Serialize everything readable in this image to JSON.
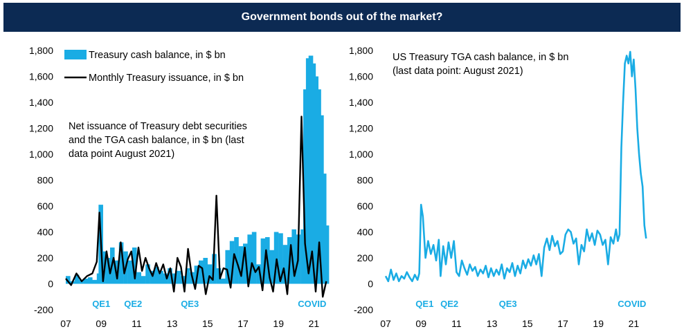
{
  "title": "Government bonds out of the market?",
  "colors": {
    "title_bg": "#0c2a53",
    "tga": "#1aace4",
    "issuance": "#000000",
    "event": "#1aace4"
  },
  "chart_data": [
    {
      "type": "bar",
      "name": "left",
      "legend": [
        "Treasury cash balance, in $ bn",
        "Monthly Treasury issuance, in $ bn"
      ],
      "annotation": [
        "Net issuance of Treasury debt securities",
        "and the TGA cash balance, in $ bn (last",
        "data point August 2021)"
      ],
      "xlim": [
        2007,
        2022
      ],
      "ylim": [
        -200,
        1800
      ],
      "yticks": [
        -200,
        0,
        200,
        400,
        600,
        800,
        1000,
        1200,
        1400,
        1600,
        1800
      ],
      "ytick_labels": [
        "-200",
        "0",
        "200",
        "400",
        "600",
        "800",
        "1,000",
        "1,200",
        "1,400",
        "1,600",
        "1,800"
      ],
      "xticks": [
        2007,
        2009,
        2011,
        2013,
        2015,
        2017,
        2019,
        2021
      ],
      "xtick_labels": [
        "07",
        "09",
        "11",
        "13",
        "15",
        "17",
        "19",
        "21"
      ],
      "events": [
        {
          "label": "QE1",
          "x": 2009.0
        },
        {
          "label": "QE2",
          "x": 2010.8
        },
        {
          "label": "QE3",
          "x": 2014.0
        },
        {
          "label": "COVID",
          "x": 2020.9
        }
      ],
      "series": [
        {
          "name": "Treasury cash balance, in $ bn",
          "kind": "bar",
          "x": [
            2007.0,
            2007.25,
            2007.5,
            2007.75,
            2008.0,
            2008.25,
            2008.5,
            2008.75,
            2008.85,
            2009.0,
            2009.25,
            2009.5,
            2009.75,
            2010.0,
            2010.25,
            2010.5,
            2010.75,
            2011.0,
            2011.25,
            2011.5,
            2011.75,
            2012.0,
            2012.25,
            2012.5,
            2012.75,
            2013.0,
            2013.25,
            2013.5,
            2013.75,
            2014.0,
            2014.25,
            2014.5,
            2014.75,
            2015.0,
            2015.25,
            2015.5,
            2015.75,
            2016.0,
            2016.25,
            2016.5,
            2016.75,
            2017.0,
            2017.25,
            2017.5,
            2017.75,
            2018.0,
            2018.25,
            2018.5,
            2018.75,
            2019.0,
            2019.25,
            2019.5,
            2019.75,
            2020.0,
            2020.25,
            2020.4,
            2020.55,
            2020.7,
            2020.85,
            2021.0,
            2021.15,
            2021.3,
            2021.45,
            2021.6
          ],
          "values": [
            60,
            20,
            70,
            30,
            40,
            50,
            30,
            80,
            610,
            250,
            200,
            280,
            180,
            320,
            250,
            180,
            280,
            90,
            60,
            150,
            100,
            130,
            100,
            80,
            120,
            80,
            100,
            60,
            120,
            90,
            140,
            180,
            200,
            150,
            230,
            120,
            40,
            260,
            330,
            360,
            290,
            310,
            380,
            400,
            150,
            350,
            360,
            260,
            400,
            390,
            300,
            360,
            420,
            380,
            420,
            1500,
            1740,
            1760,
            1700,
            1600,
            1500,
            1300,
            850,
            450
          ]
        },
        {
          "name": "Monthly Treasury issuance, in $ bn",
          "kind": "line",
          "x": [
            2007.0,
            2007.3,
            2007.6,
            2007.9,
            2008.2,
            2008.5,
            2008.75,
            2008.9,
            2009.1,
            2009.3,
            2009.5,
            2009.7,
            2009.9,
            2010.1,
            2010.3,
            2010.5,
            2010.7,
            2010.9,
            2011.1,
            2011.3,
            2011.5,
            2011.7,
            2011.9,
            2012.1,
            2012.3,
            2012.5,
            2012.7,
            2012.9,
            2013.1,
            2013.3,
            2013.5,
            2013.7,
            2013.9,
            2014.1,
            2014.3,
            2014.5,
            2014.7,
            2014.9,
            2015.1,
            2015.3,
            2015.5,
            2015.7,
            2015.9,
            2016.1,
            2016.3,
            2016.5,
            2016.7,
            2016.9,
            2017.1,
            2017.3,
            2017.5,
            2017.7,
            2017.9,
            2018.1,
            2018.3,
            2018.5,
            2018.7,
            2018.9,
            2019.1,
            2019.3,
            2019.5,
            2019.7,
            2019.9,
            2020.1,
            2020.3,
            2020.5,
            2020.7,
            2020.9,
            2021.1,
            2021.3,
            2021.5,
            2021.7
          ],
          "values": [
            40,
            -10,
            80,
            20,
            60,
            80,
            170,
            550,
            20,
            250,
            80,
            200,
            40,
            320,
            80,
            190,
            250,
            40,
            280,
            100,
            200,
            120,
            60,
            160,
            80,
            150,
            40,
            120,
            -60,
            200,
            130,
            -60,
            270,
            70,
            -40,
            140,
            120,
            -80,
            60,
            30,
            680,
            40,
            120,
            110,
            -30,
            230,
            150,
            60,
            280,
            -20,
            160,
            90,
            130,
            -50,
            260,
            50,
            -60,
            190,
            20,
            120,
            -80,
            300,
            60,
            180,
            1290,
            310,
            80,
            250,
            -60,
            320,
            -100,
            20
          ]
        }
      ]
    },
    {
      "type": "line",
      "name": "right",
      "annotation": [
        "US Treasury TGA cash balance, in $ bn",
        "(last data point: August 2021)"
      ],
      "xlim": [
        2007,
        2022
      ],
      "ylim": [
        -200,
        1800
      ],
      "yticks": [
        -200,
        0,
        200,
        400,
        600,
        800,
        1000,
        1200,
        1400,
        1600,
        1800
      ],
      "ytick_labels": [
        "-200",
        "0",
        "200",
        "400",
        "600",
        "800",
        "1,000",
        "1,200",
        "1,400",
        "1,600",
        "1,800"
      ],
      "xticks": [
        2007,
        2009,
        2011,
        2013,
        2015,
        2017,
        2019,
        2021
      ],
      "xtick_labels": [
        "07",
        "09",
        "11",
        "13",
        "15",
        "17",
        "19",
        "21"
      ],
      "events": [
        {
          "label": "QE1",
          "x": 2009.2
        },
        {
          "label": "QE2",
          "x": 2010.6
        },
        {
          "label": "QE3",
          "x": 2013.9
        },
        {
          "label": "COVID",
          "x": 2020.9
        }
      ],
      "series": [
        {
          "name": "US Treasury TGA cash balance, in $ bn",
          "x": [
            2007.0,
            2007.15,
            2007.3,
            2007.45,
            2007.6,
            2007.75,
            2007.9,
            2008.05,
            2008.2,
            2008.35,
            2008.5,
            2008.65,
            2008.8,
            2008.9,
            2009.0,
            2009.1,
            2009.25,
            2009.4,
            2009.55,
            2009.7,
            2009.85,
            2010.0,
            2010.1,
            2010.25,
            2010.4,
            2010.55,
            2010.7,
            2010.85,
            2011.0,
            2011.15,
            2011.3,
            2011.45,
            2011.6,
            2011.75,
            2011.9,
            2012.05,
            2012.2,
            2012.35,
            2012.5,
            2012.65,
            2012.8,
            2012.95,
            2013.1,
            2013.25,
            2013.4,
            2013.55,
            2013.7,
            2013.85,
            2014.0,
            2014.15,
            2014.3,
            2014.45,
            2014.6,
            2014.75,
            2014.9,
            2015.05,
            2015.2,
            2015.35,
            2015.5,
            2015.65,
            2015.8,
            2015.95,
            2016.1,
            2016.25,
            2016.4,
            2016.55,
            2016.7,
            2016.85,
            2017.0,
            2017.15,
            2017.3,
            2017.45,
            2017.6,
            2017.75,
            2017.9,
            2018.05,
            2018.2,
            2018.35,
            2018.5,
            2018.65,
            2018.8,
            2018.95,
            2019.1,
            2019.25,
            2019.4,
            2019.55,
            2019.7,
            2019.85,
            2020.0,
            2020.1,
            2020.2,
            2020.3,
            2020.4,
            2020.5,
            2020.6,
            2020.7,
            2020.8,
            2020.9,
            2021.0,
            2021.1,
            2021.2,
            2021.3,
            2021.4,
            2021.5,
            2021.6,
            2021.7
          ],
          "values": [
            60,
            20,
            110,
            30,
            80,
            20,
            60,
            40,
            90,
            50,
            20,
            70,
            30,
            80,
            610,
            520,
            200,
            330,
            230,
            300,
            180,
            340,
            60,
            290,
            150,
            320,
            200,
            330,
            90,
            60,
            180,
            120,
            70,
            150,
            100,
            130,
            60,
            110,
            80,
            140,
            50,
            120,
            60,
            110,
            70,
            150,
            40,
            120,
            90,
            160,
            60,
            140,
            80,
            180,
            120,
            190,
            140,
            220,
            150,
            230,
            60,
            280,
            350,
            260,
            370,
            290,
            330,
            230,
            250,
            380,
            420,
            400,
            310,
            350,
            150,
            300,
            250,
            420,
            330,
            390,
            300,
            410,
            380,
            300,
            340,
            150,
            360,
            310,
            420,
            330,
            380,
            1050,
            1400,
            1700,
            1760,
            1700,
            1790,
            1600,
            1730,
            1500,
            1200,
            1000,
            850,
            750,
            450,
            350
          ]
        }
      ]
    }
  ]
}
